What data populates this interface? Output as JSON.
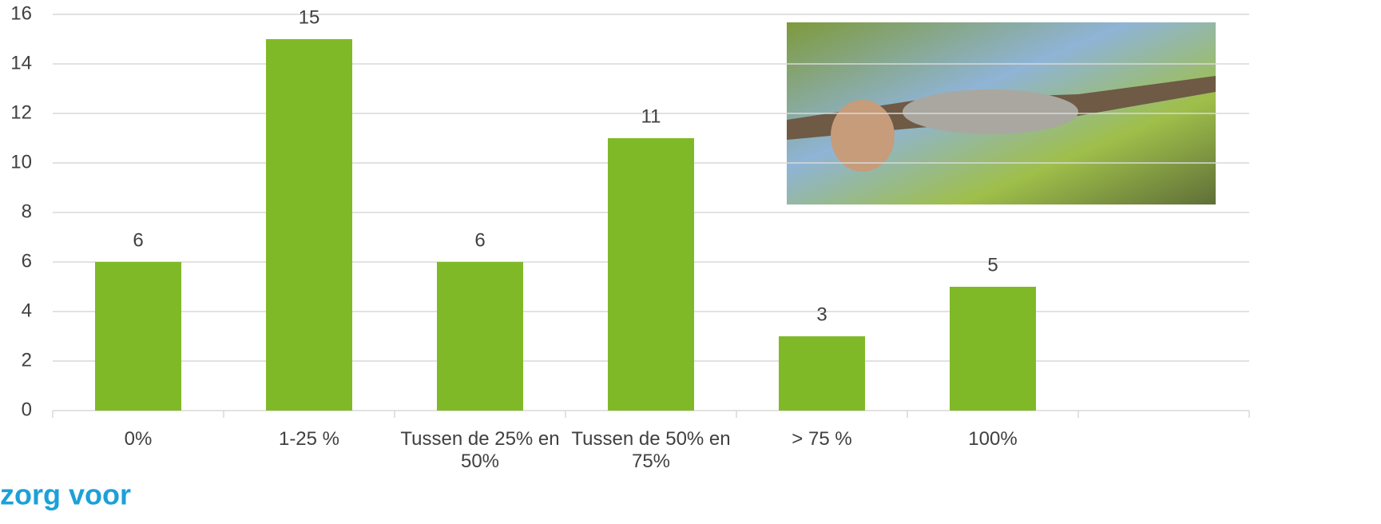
{
  "chart_data": {
    "type": "bar",
    "categories": [
      "0%",
      "1-25 %",
      "Tussen de 25% en 50%",
      "Tussen de 50% en 75%",
      "> 75 %",
      "100%",
      null
    ],
    "values": [
      6,
      15,
      6,
      11,
      3,
      5,
      null
    ],
    "color": "#80b927",
    "ylim": [
      0,
      16
    ],
    "yticks": [
      0,
      2,
      4,
      6,
      8,
      10,
      12,
      14,
      16
    ],
    "grid": true,
    "logo_text": "zorg voor"
  }
}
